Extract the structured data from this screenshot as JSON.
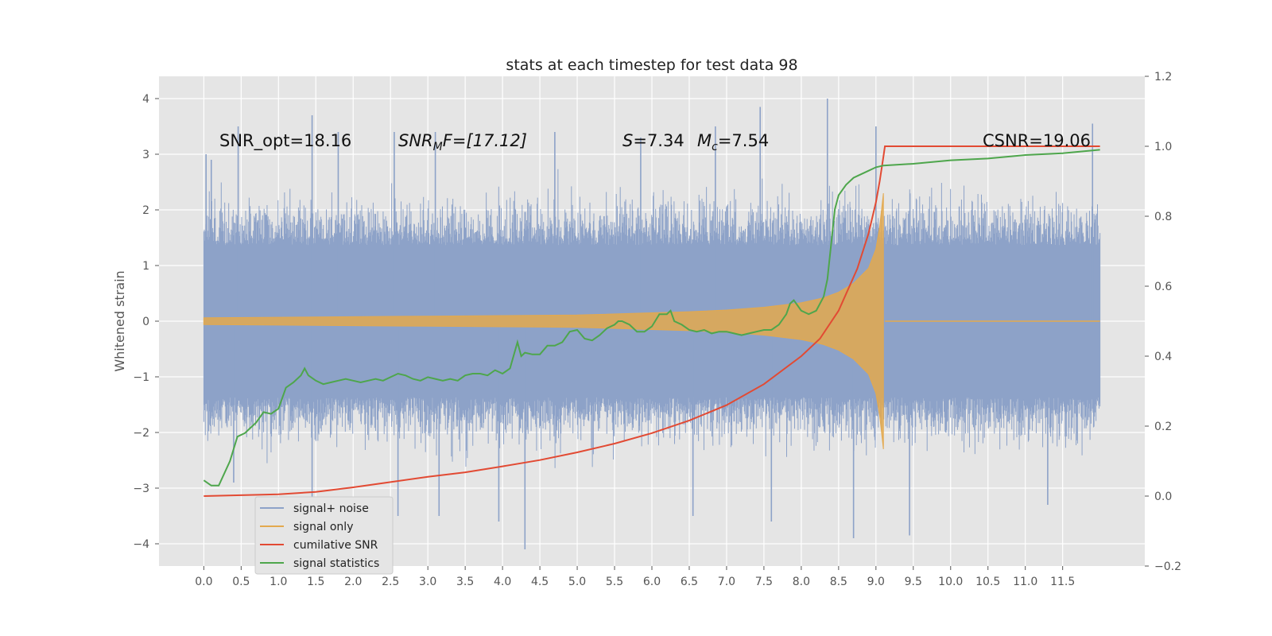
{
  "chart_data": {
    "type": "line",
    "title": "stats at each timestep for test data 98",
    "xlabel": "",
    "ylabel": "Whitened strain",
    "y2label": "",
    "xlim": [
      -0.6,
      12.6
    ],
    "ylim": [
      -4.4,
      4.4
    ],
    "y2lim": [
      -0.2,
      1.2
    ],
    "x_ticks": [
      "0.0",
      "0.5",
      "1.0",
      "1.5",
      "2.0",
      "2.5",
      "3.0",
      "3.5",
      "4.0",
      "4.5",
      "5.0",
      "5.5",
      "6.0",
      "6.5",
      "7.0",
      "7.5",
      "8.0",
      "8.5",
      "9.0",
      "9.5",
      "10.0",
      "10.5",
      "11.0",
      "11.5"
    ],
    "y_ticks": [
      4,
      3,
      2,
      1,
      0,
      -1,
      -2,
      -3,
      -4
    ],
    "y2_ticks": [
      "1.2",
      "1.0",
      "0.8",
      "0.6",
      "0.4",
      "0.2",
      "0.0",
      "−0.2"
    ],
    "grid": true,
    "legend_position": "lower-left",
    "annotations": {
      "snr_opt": "SNR_opt=18.16",
      "snr_mf_base": "SNR",
      "snr_mf_sub": "M",
      "snr_mf_rest": "F=[17.12]",
      "s_italic": "S",
      "s_value": "=7.34",
      "mc_base": "M",
      "mc_sub": "c",
      "mc_value": "=7.54",
      "csnr": "CSNR=19.06"
    },
    "series": [
      {
        "name": "signal+ noise",
        "axis": "left",
        "color": "#8da2c8",
        "style": "dense-noise",
        "x_range": [
          0.0,
          12.0
        ],
        "typical_amplitude": 1.9,
        "spikes": [
          {
            "x": 0.03,
            "y": 3.0
          },
          {
            "x": 0.1,
            "y": 2.9
          },
          {
            "x": 0.46,
            "y": 3.5
          },
          {
            "x": 1.45,
            "y": 3.7
          },
          {
            "x": 1.8,
            "y": 3.4
          },
          {
            "x": 2.55,
            "y": 3.4
          },
          {
            "x": 3.1,
            "y": 3.4
          },
          {
            "x": 4.7,
            "y": 3.4
          },
          {
            "x": 5.85,
            "y": 3.3
          },
          {
            "x": 6.85,
            "y": 3.5
          },
          {
            "x": 7.45,
            "y": 3.85
          },
          {
            "x": 8.35,
            "y": 4.0
          },
          {
            "x": 9.0,
            "y": 3.5
          },
          {
            "x": 11.9,
            "y": 3.55
          },
          {
            "x": 4.3,
            "y": -4.1
          },
          {
            "x": 3.95,
            "y": -3.6
          },
          {
            "x": 2.6,
            "y": -3.5
          },
          {
            "x": 3.15,
            "y": -3.5
          },
          {
            "x": 6.55,
            "y": -3.5
          },
          {
            "x": 8.7,
            "y": -3.9
          },
          {
            "x": 9.45,
            "y": -3.85
          },
          {
            "x": 11.3,
            "y": -3.3
          },
          {
            "x": 7.6,
            "y": -3.6
          },
          {
            "x": 1.45,
            "y": -3.2
          },
          {
            "x": 0.4,
            "y": -2.9
          }
        ]
      },
      {
        "name": "signal only",
        "axis": "left",
        "color": "#e3a94e",
        "style": "chirp-envelope",
        "envelope": {
          "x": [
            0.0,
            1.0,
            2.0,
            3.0,
            4.0,
            5.0,
            6.0,
            6.5,
            7.0,
            7.5,
            8.0,
            8.3,
            8.5,
            8.7,
            8.9,
            9.0,
            9.05,
            9.1
          ],
          "amp": [
            0.06,
            0.07,
            0.08,
            0.09,
            0.1,
            0.11,
            0.15,
            0.17,
            0.2,
            0.25,
            0.33,
            0.42,
            0.52,
            0.68,
            0.95,
            1.3,
            1.7,
            2.3
          ]
        },
        "flat_after": [
          9.12,
          12.0
        ]
      },
      {
        "name": "cumilative SNR",
        "axis": "right",
        "color": "#e24a33",
        "x": [
          0.0,
          1.0,
          1.5,
          2.0,
          2.5,
          3.0,
          3.5,
          4.0,
          4.5,
          5.0,
          5.5,
          6.0,
          6.5,
          7.0,
          7.5,
          8.0,
          8.25,
          8.5,
          8.75,
          8.9,
          9.0,
          9.05,
          9.1,
          9.12,
          12.0
        ],
        "y": [
          0.0,
          0.005,
          0.012,
          0.025,
          0.04,
          0.055,
          0.068,
          0.085,
          0.103,
          0.125,
          0.15,
          0.18,
          0.216,
          0.26,
          0.32,
          0.4,
          0.45,
          0.53,
          0.65,
          0.75,
          0.84,
          0.9,
          0.97,
          1.0,
          1.0
        ]
      },
      {
        "name": "signal statistics",
        "axis": "right",
        "color": "#4ea64c",
        "x": [
          0.0,
          0.1,
          0.2,
          0.35,
          0.45,
          0.55,
          0.6,
          0.7,
          0.8,
          0.9,
          1.0,
          1.1,
          1.2,
          1.3,
          1.35,
          1.4,
          1.5,
          1.6,
          1.7,
          1.8,
          1.9,
          2.0,
          2.1,
          2.2,
          2.3,
          2.4,
          2.5,
          2.6,
          2.7,
          2.8,
          2.9,
          3.0,
          3.1,
          3.2,
          3.3,
          3.4,
          3.5,
          3.6,
          3.7,
          3.8,
          3.9,
          4.0,
          4.1,
          4.2,
          4.25,
          4.3,
          4.4,
          4.5,
          4.6,
          4.7,
          4.8,
          4.9,
          5.0,
          5.1,
          5.2,
          5.3,
          5.4,
          5.5,
          5.55,
          5.6,
          5.7,
          5.8,
          5.9,
          6.0,
          6.1,
          6.2,
          6.25,
          6.3,
          6.4,
          6.5,
          6.6,
          6.7,
          6.8,
          6.9,
          7.0,
          7.1,
          7.2,
          7.3,
          7.4,
          7.5,
          7.6,
          7.7,
          7.8,
          7.85,
          7.9,
          8.0,
          8.1,
          8.2,
          8.3,
          8.35,
          8.4,
          8.45,
          8.5,
          8.6,
          8.7,
          8.8,
          8.9,
          9.0,
          9.1,
          9.5,
          10.0,
          10.5,
          11.0,
          11.5,
          12.0
        ],
        "y": [
          0.045,
          0.03,
          0.03,
          0.1,
          0.17,
          0.18,
          0.19,
          0.21,
          0.24,
          0.235,
          0.25,
          0.31,
          0.325,
          0.345,
          0.365,
          0.345,
          0.33,
          0.32,
          0.325,
          0.33,
          0.335,
          0.33,
          0.325,
          0.33,
          0.335,
          0.33,
          0.34,
          0.35,
          0.345,
          0.335,
          0.33,
          0.34,
          0.335,
          0.33,
          0.335,
          0.33,
          0.345,
          0.35,
          0.35,
          0.345,
          0.36,
          0.35,
          0.365,
          0.44,
          0.4,
          0.41,
          0.405,
          0.405,
          0.43,
          0.43,
          0.44,
          0.47,
          0.475,
          0.45,
          0.445,
          0.46,
          0.48,
          0.49,
          0.5,
          0.5,
          0.49,
          0.47,
          0.47,
          0.485,
          0.52,
          0.52,
          0.53,
          0.5,
          0.49,
          0.475,
          0.47,
          0.475,
          0.465,
          0.47,
          0.47,
          0.465,
          0.46,
          0.465,
          0.47,
          0.475,
          0.475,
          0.49,
          0.52,
          0.55,
          0.56,
          0.53,
          0.52,
          0.53,
          0.57,
          0.62,
          0.72,
          0.82,
          0.86,
          0.89,
          0.91,
          0.92,
          0.93,
          0.94,
          0.945,
          0.95,
          0.96,
          0.965,
          0.975,
          0.98,
          0.99
        ]
      }
    ]
  }
}
